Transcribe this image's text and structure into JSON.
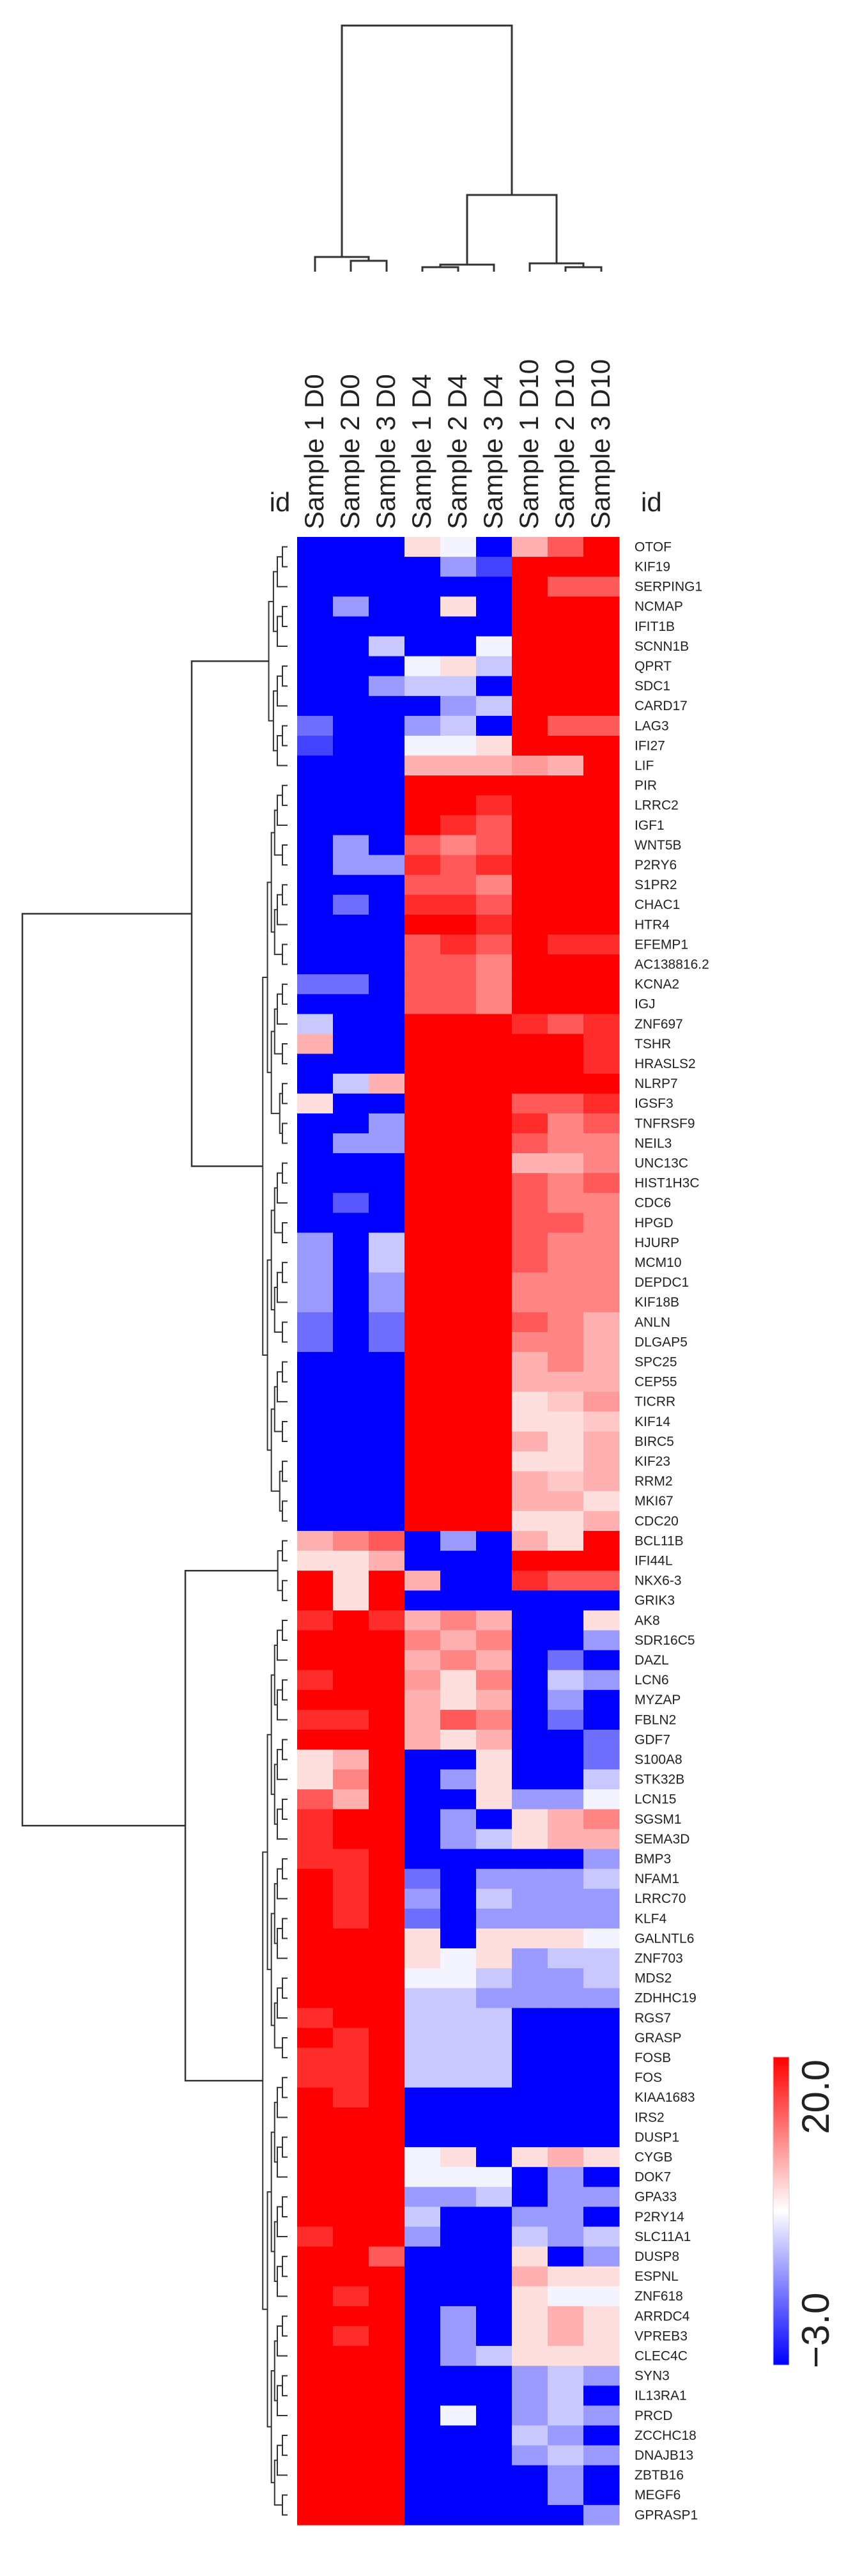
{
  "chart_data": {
    "type": "heatmap",
    "title": "",
    "row_header": "id",
    "column_header": "id",
    "columns": [
      "Sample 1 D0",
      "Sample 2 D0",
      "Sample 3 D0",
      "Sample 1 D4",
      "Sample 2 D4",
      "Sample 3 D4",
      "Sample 1 D10",
      "Sample 2 D10",
      "Sample 3 D10"
    ],
    "rows": [
      "OTOF",
      "KIF19",
      "SERPING1",
      "NCMAP",
      "IFIT1B",
      "SCNN1B",
      "QPRT",
      "SDC1",
      "CARD17",
      "LAG3",
      "IFI27",
      "LIF",
      "PIR",
      "LRRC2",
      "IGF1",
      "WNT5B",
      "P2RY6",
      "S1PR2",
      "CHAC1",
      "HTR4",
      "EFEMP1",
      "AC138816.2",
      "KCNA2",
      "IGJ",
      "ZNF697",
      "TSHR",
      "HRASLS2",
      "NLRP7",
      "IGSF3",
      "TNFRSF9",
      "NEIL3",
      "UNC13C",
      "HIST1H3C",
      "CDC6",
      "HPGD",
      "HJURP",
      "MCM10",
      "DEPDC1",
      "KIF18B",
      "ANLN",
      "DLGAP5",
      "SPC25",
      "CEP55",
      "TICRR",
      "KIF14",
      "BIRC5",
      "KIF23",
      "RRM2",
      "MKI67",
      "CDC20",
      "BCL11B",
      "IFI44L",
      "NKX6-3",
      "GRIK3",
      "AK8",
      "SDR16C5",
      "DAZL",
      "LCN6",
      "MYZAP",
      "FBLN2",
      "GDF7",
      "S100A8",
      "STK32B",
      "LCN15",
      "SGSM1",
      "SEMA3D",
      "BMP3",
      "NFAM1",
      "LRRC70",
      "KLF4",
      "GALNTL6",
      "ZNF703",
      "MDS2",
      "ZDHHC19",
      "RGS7",
      "GRASP",
      "FOSB",
      "FOS",
      "KIAA1683",
      "IRS2",
      "DUSP1",
      "CYGB",
      "DOK7",
      "GPA33",
      "P2RY14",
      "SLC11A1",
      "DUSP8",
      "ESPNL",
      "ZNF618",
      "ARRDC4",
      "VPREB3",
      "CLEC4C",
      "SYN3",
      "IL13RA1",
      "PRCD",
      "ZCCHC18",
      "DNAJB13",
      "ZBTB16",
      "MEGF6",
      "GPRASP1"
    ],
    "value_range": [
      -3.0,
      20.0
    ],
    "values": [
      [
        -3,
        -3,
        -3,
        10,
        8,
        -3,
        12,
        16,
        20
      ],
      [
        -3,
        -3,
        -3,
        -3,
        4,
        0,
        20,
        20,
        20
      ],
      [
        -3,
        -3,
        -3,
        -3,
        -3,
        -3,
        20,
        16,
        16
      ],
      [
        -3,
        4,
        -3,
        -3,
        10,
        -3,
        20,
        20,
        20
      ],
      [
        -3,
        -3,
        -3,
        -3,
        -3,
        -3,
        20,
        20,
        20
      ],
      [
        -3,
        -3,
        6,
        -3,
        -3,
        8,
        20,
        20,
        20
      ],
      [
        -3,
        -3,
        -3,
        8,
        10,
        6,
        20,
        20,
        20
      ],
      [
        -3,
        -3,
        4,
        6,
        6,
        -3,
        20,
        20,
        20
      ],
      [
        -3,
        -3,
        -3,
        -3,
        4,
        6,
        20,
        20,
        20
      ],
      [
        2,
        -3,
        -3,
        4,
        6,
        -3,
        20,
        16,
        16
      ],
      [
        0,
        -3,
        -3,
        8,
        8,
        10,
        20,
        20,
        20
      ],
      [
        -3,
        -3,
        -3,
        12,
        12,
        12,
        13,
        12,
        20
      ],
      [
        -3,
        -3,
        -3,
        20,
        20,
        20,
        20,
        20,
        20
      ],
      [
        -3,
        -3,
        -3,
        20,
        20,
        18,
        20,
        20,
        20
      ],
      [
        -3,
        -3,
        -3,
        20,
        18,
        16,
        20,
        20,
        20
      ],
      [
        -3,
        4,
        -3,
        16,
        14,
        16,
        20,
        20,
        20
      ],
      [
        -3,
        4,
        4,
        18,
        16,
        18,
        20,
        20,
        20
      ],
      [
        -3,
        -3,
        -3,
        16,
        16,
        14,
        20,
        20,
        20
      ],
      [
        -3,
        2,
        -3,
        18,
        18,
        16,
        20,
        20,
        20
      ],
      [
        -3,
        -3,
        -3,
        20,
        20,
        18,
        20,
        20,
        20
      ],
      [
        -3,
        -3,
        -3,
        16,
        18,
        16,
        20,
        18,
        18
      ],
      [
        -3,
        -3,
        -3,
        16,
        16,
        14,
        20,
        20,
        20
      ],
      [
        2,
        2,
        -3,
        16,
        16,
        14,
        20,
        20,
        20
      ],
      [
        -3,
        -3,
        -3,
        16,
        16,
        14,
        20,
        20,
        20
      ],
      [
        6,
        -3,
        -3,
        20,
        20,
        20,
        18,
        16,
        18
      ],
      [
        12,
        -3,
        -3,
        20,
        20,
        20,
        20,
        20,
        18
      ],
      [
        -3,
        -3,
        -3,
        20,
        20,
        20,
        20,
        20,
        18
      ],
      [
        -3,
        6,
        12,
        20,
        20,
        20,
        20,
        20,
        20
      ],
      [
        10,
        -3,
        -3,
        20,
        20,
        20,
        16,
        16,
        18
      ],
      [
        -3,
        -3,
        4,
        20,
        20,
        20,
        18,
        14,
        16
      ],
      [
        -3,
        4,
        4,
        20,
        20,
        20,
        16,
        14,
        14
      ],
      [
        -3,
        -3,
        -3,
        20,
        20,
        20,
        12,
        12,
        14
      ],
      [
        -3,
        -3,
        -3,
        20,
        20,
        20,
        16,
        14,
        16
      ],
      [
        -3,
        1,
        -3,
        20,
        20,
        20,
        16,
        14,
        14
      ],
      [
        -3,
        -3,
        -3,
        20,
        20,
        20,
        16,
        16,
        14
      ],
      [
        4,
        -3,
        6,
        20,
        20,
        20,
        16,
        14,
        14
      ],
      [
        4,
        -3,
        6,
        20,
        20,
        20,
        16,
        14,
        14
      ],
      [
        4,
        -3,
        4,
        20,
        20,
        20,
        14,
        14,
        14
      ],
      [
        4,
        -3,
        4,
        20,
        20,
        20,
        14,
        14,
        14
      ],
      [
        2,
        -3,
        2,
        20,
        20,
        20,
        16,
        14,
        12
      ],
      [
        2,
        -3,
        2,
        20,
        20,
        20,
        14,
        14,
        12
      ],
      [
        -3,
        -3,
        -3,
        20,
        20,
        20,
        12,
        14,
        12
      ],
      [
        -3,
        -3,
        -3,
        20,
        20,
        20,
        12,
        12,
        12
      ],
      [
        -3,
        -3,
        -3,
        20,
        20,
        20,
        10,
        11,
        13
      ],
      [
        -3,
        -3,
        -3,
        20,
        20,
        20,
        10,
        10,
        11
      ],
      [
        -3,
        -3,
        -3,
        20,
        20,
        20,
        12,
        10,
        12
      ],
      [
        -3,
        -3,
        -3,
        20,
        20,
        20,
        10,
        10,
        12
      ],
      [
        -3,
        -3,
        -3,
        20,
        20,
        20,
        12,
        11,
        12
      ],
      [
        -3,
        -3,
        -3,
        20,
        20,
        20,
        12,
        12,
        10
      ],
      [
        -3,
        -3,
        -3,
        20,
        20,
        20,
        10,
        10,
        12
      ],
      [
        12,
        14,
        16,
        -3,
        4,
        -3,
        12,
        10,
        20
      ],
      [
        10,
        10,
        12,
        -3,
        -3,
        -3,
        20,
        20,
        20
      ],
      [
        20,
        10,
        20,
        12,
        -3,
        -3,
        18,
        16,
        16
      ],
      [
        20,
        10,
        20,
        -3,
        -3,
        -3,
        -3,
        -3,
        -3
      ],
      [
        18,
        20,
        18,
        12,
        14,
        12,
        -3,
        -3,
        10
      ],
      [
        20,
        20,
        20,
        14,
        12,
        14,
        -3,
        -3,
        4
      ],
      [
        20,
        20,
        20,
        12,
        14,
        12,
        -3,
        2,
        -3
      ],
      [
        18,
        20,
        20,
        13,
        10,
        14,
        -3,
        6,
        4
      ],
      [
        20,
        20,
        20,
        12,
        10,
        12,
        -3,
        4,
        -3
      ],
      [
        18,
        18,
        20,
        12,
        16,
        14,
        -3,
        2,
        -3
      ],
      [
        20,
        20,
        20,
        12,
        10,
        12,
        -3,
        -3,
        2
      ],
      [
        10,
        12,
        20,
        -3,
        -3,
        10,
        -3,
        -3,
        2
      ],
      [
        10,
        14,
        20,
        -3,
        4,
        10,
        -3,
        -3,
        6
      ],
      [
        16,
        12,
        20,
        -3,
        -3,
        10,
        4,
        4,
        8
      ],
      [
        18,
        20,
        20,
        -3,
        4,
        -3,
        10,
        12,
        14
      ],
      [
        18,
        20,
        20,
        -3,
        4,
        6,
        10,
        12,
        12
      ],
      [
        18,
        18,
        20,
        -3,
        -3,
        -3,
        -3,
        -3,
        4
      ],
      [
        20,
        18,
        20,
        2,
        -3,
        4,
        4,
        4,
        6
      ],
      [
        20,
        18,
        20,
        4,
        -3,
        6,
        4,
        4,
        4
      ],
      [
        20,
        18,
        20,
        2,
        -3,
        4,
        4,
        4,
        4
      ],
      [
        20,
        20,
        20,
        10,
        -3,
        10,
        10,
        10,
        8
      ],
      [
        20,
        20,
        20,
        10,
        8,
        10,
        4,
        6,
        6
      ],
      [
        20,
        20,
        20,
        8,
        8,
        6,
        4,
        4,
        6
      ],
      [
        20,
        20,
        20,
        6,
        6,
        4,
        4,
        4,
        4
      ],
      [
        18,
        20,
        20,
        6,
        6,
        6,
        -3,
        -3,
        -3
      ],
      [
        20,
        18,
        20,
        6,
        6,
        6,
        -3,
        -3,
        -3
      ],
      [
        18,
        18,
        20,
        6,
        6,
        6,
        -3,
        -3,
        -3
      ],
      [
        18,
        18,
        20,
        6,
        6,
        6,
        -3,
        -3,
        -3
      ],
      [
        20,
        18,
        20,
        -3,
        -3,
        -3,
        -3,
        -3,
        -3
      ],
      [
        20,
        20,
        20,
        -3,
        -3,
        -3,
        -3,
        -3,
        -3
      ],
      [
        20,
        20,
        20,
        -3,
        -3,
        -3,
        -3,
        -3,
        -3
      ],
      [
        20,
        20,
        20,
        8,
        10,
        -3,
        10,
        12,
        10
      ],
      [
        20,
        20,
        20,
        8,
        8,
        8,
        -3,
        4,
        -3
      ],
      [
        20,
        20,
        20,
        4,
        4,
        6,
        -3,
        4,
        4
      ],
      [
        20,
        20,
        20,
        6,
        -3,
        -3,
        4,
        4,
        -3
      ],
      [
        18,
        20,
        20,
        4,
        -3,
        -3,
        6,
        4,
        6
      ],
      [
        20,
        20,
        16,
        -3,
        -3,
        -3,
        10,
        -3,
        4
      ],
      [
        20,
        20,
        20,
        -3,
        -3,
        -3,
        12,
        10,
        10
      ],
      [
        20,
        18,
        20,
        -3,
        -3,
        -3,
        10,
        8,
        8
      ],
      [
        20,
        20,
        20,
        -3,
        4,
        -3,
        10,
        12,
        10
      ],
      [
        20,
        18,
        20,
        -3,
        4,
        -3,
        10,
        12,
        10
      ],
      [
        20,
        20,
        20,
        -3,
        4,
        6,
        10,
        10,
        10
      ],
      [
        20,
        20,
        20,
        -3,
        -3,
        -3,
        4,
        6,
        4
      ],
      [
        20,
        20,
        20,
        -3,
        -3,
        -3,
        4,
        6,
        -3
      ],
      [
        20,
        20,
        20,
        -3,
        8,
        -3,
        4,
        6,
        4
      ],
      [
        20,
        20,
        20,
        -3,
        -3,
        -3,
        6,
        4,
        -3
      ],
      [
        20,
        20,
        20,
        -3,
        -3,
        -3,
        4,
        6,
        4
      ],
      [
        20,
        20,
        20,
        -3,
        -3,
        -3,
        -3,
        4,
        -3
      ],
      [
        20,
        20,
        20,
        -3,
        -3,
        -3,
        -3,
        4,
        -3
      ],
      [
        20,
        20,
        20,
        -3,
        -3,
        -3,
        -3,
        -3,
        4
      ]
    ],
    "color_scale": {
      "low": "#0000ff",
      "mid": "#ffffff",
      "high": "#ff0000",
      "legend_max_label": "20.0",
      "legend_min_label": "−3.0"
    },
    "dendrogram_color": "#333333"
  }
}
